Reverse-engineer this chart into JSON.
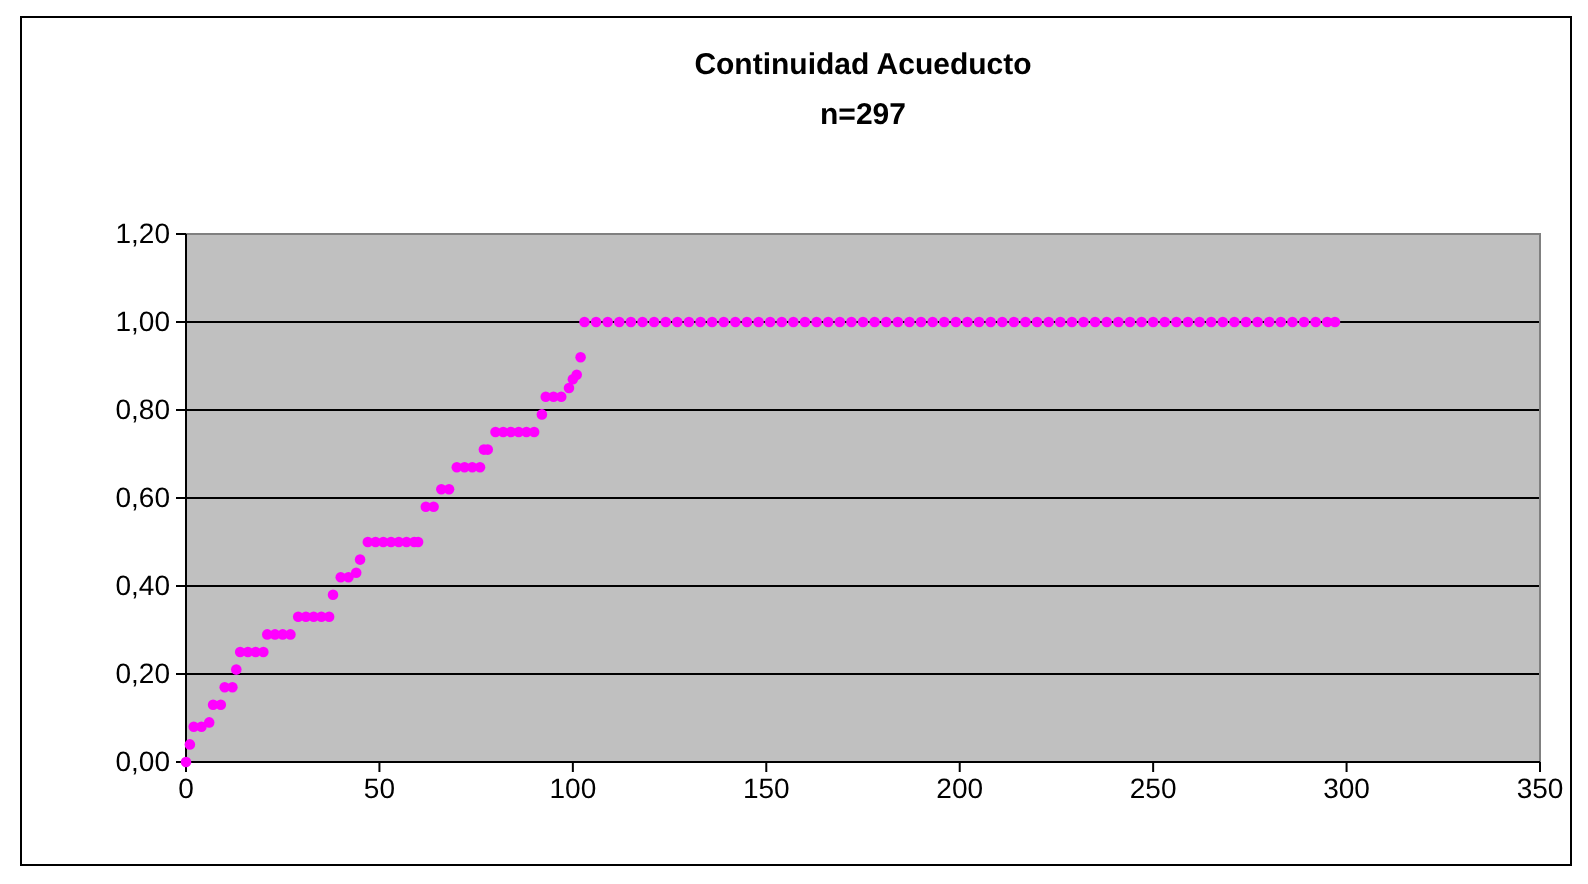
{
  "chart_data": {
    "type": "scatter",
    "title": "Continuidad Acueducto",
    "subtitle": "n=297",
    "xlim": [
      0,
      350
    ],
    "xticks": [
      0,
      50,
      100,
      150,
      200,
      250,
      300,
      350
    ],
    "ylim": [
      0,
      1.2
    ],
    "yticks": [
      {
        "value": 0,
        "label": "0,00"
      },
      {
        "value": 0.2,
        "label": "0,20"
      },
      {
        "value": 0.4,
        "label": "0,40"
      },
      {
        "value": 0.6,
        "label": "0,60"
      },
      {
        "value": 0.8,
        "label": "0,80"
      },
      {
        "value": 1,
        "label": "1,00"
      },
      {
        "value": 1.2,
        "label": "1,20"
      }
    ],
    "grid": "y",
    "marker": "circle",
    "series": [
      {
        "color": "#ff00ff",
        "x": [
          0,
          1,
          2,
          4,
          6,
          7,
          9,
          10,
          12,
          13,
          14,
          16,
          18,
          20,
          21,
          23,
          25,
          27,
          29,
          31,
          33,
          35,
          37,
          38,
          40,
          42,
          44,
          45,
          47,
          49,
          51,
          53,
          55,
          57,
          59,
          60,
          62,
          64,
          66,
          68,
          70,
          72,
          74,
          76,
          77,
          78,
          80,
          82,
          84,
          86,
          88,
          90,
          92,
          93,
          95,
          97,
          99,
          100,
          101,
          102,
          103,
          106,
          109,
          112,
          115,
          118,
          121,
          124,
          127,
          130,
          133,
          136,
          139,
          142,
          145,
          148,
          151,
          154,
          157,
          160,
          163,
          166,
          169,
          172,
          175,
          178,
          181,
          184,
          187,
          190,
          193,
          196,
          199,
          202,
          205,
          208,
          211,
          214,
          217,
          220,
          223,
          226,
          229,
          232,
          235,
          238,
          241,
          244,
          247,
          250,
          253,
          256,
          259,
          262,
          265,
          268,
          271,
          274,
          277,
          280,
          283,
          286,
          289,
          292,
          295,
          297
        ],
        "values": [
          0,
          0.04,
          0.08,
          0.08,
          0.09,
          0.13,
          0.13,
          0.17,
          0.17,
          0.21,
          0.25,
          0.25,
          0.25,
          0.25,
          0.29,
          0.29,
          0.29,
          0.29,
          0.33,
          0.33,
          0.33,
          0.33,
          0.33,
          0.38,
          0.42,
          0.42,
          0.43,
          0.46,
          0.5,
          0.5,
          0.5,
          0.5,
          0.5,
          0.5,
          0.5,
          0.5,
          0.58,
          0.58,
          0.62,
          0.62,
          0.67,
          0.67,
          0.67,
          0.67,
          0.71,
          0.71,
          0.75,
          0.75,
          0.75,
          0.75,
          0.75,
          0.75,
          0.79,
          0.83,
          0.83,
          0.83,
          0.85,
          0.87,
          0.88,
          0.92,
          1,
          1,
          1,
          1,
          1,
          1,
          1,
          1,
          1,
          1,
          1,
          1,
          1,
          1,
          1,
          1,
          1,
          1,
          1,
          1,
          1,
          1,
          1,
          1,
          1,
          1,
          1,
          1,
          1,
          1,
          1,
          1,
          1,
          1,
          1,
          1,
          1,
          1,
          1,
          1,
          1,
          1,
          1,
          1,
          1,
          1,
          1,
          1,
          1,
          1,
          1,
          1,
          1,
          1,
          1,
          1,
          1,
          1,
          1,
          1,
          1,
          1,
          1,
          1,
          1,
          1
        ]
      }
    ]
  }
}
